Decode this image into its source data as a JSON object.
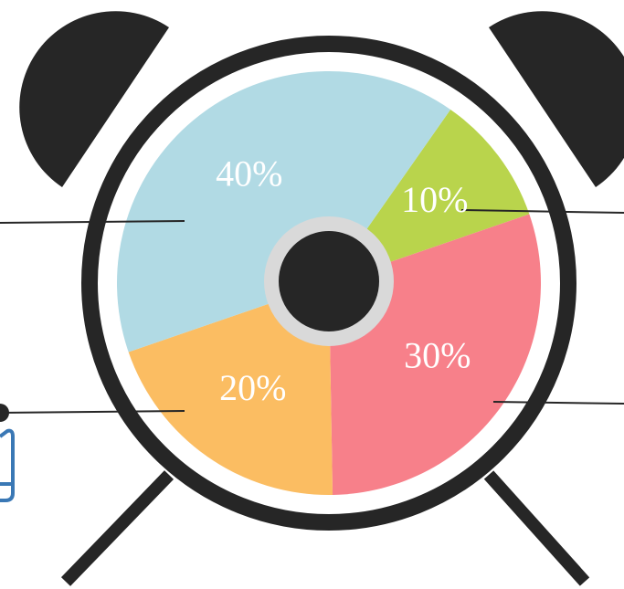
{
  "chart_data": {
    "type": "pie",
    "values": [
      10,
      30,
      20,
      40
    ],
    "value_labels": [
      "10%",
      "30%",
      "20%",
      "40%"
    ],
    "colors": [
      "#b9d44c",
      "#f7808a",
      "#fbbd62",
      "#b1dae4"
    ]
  }
}
